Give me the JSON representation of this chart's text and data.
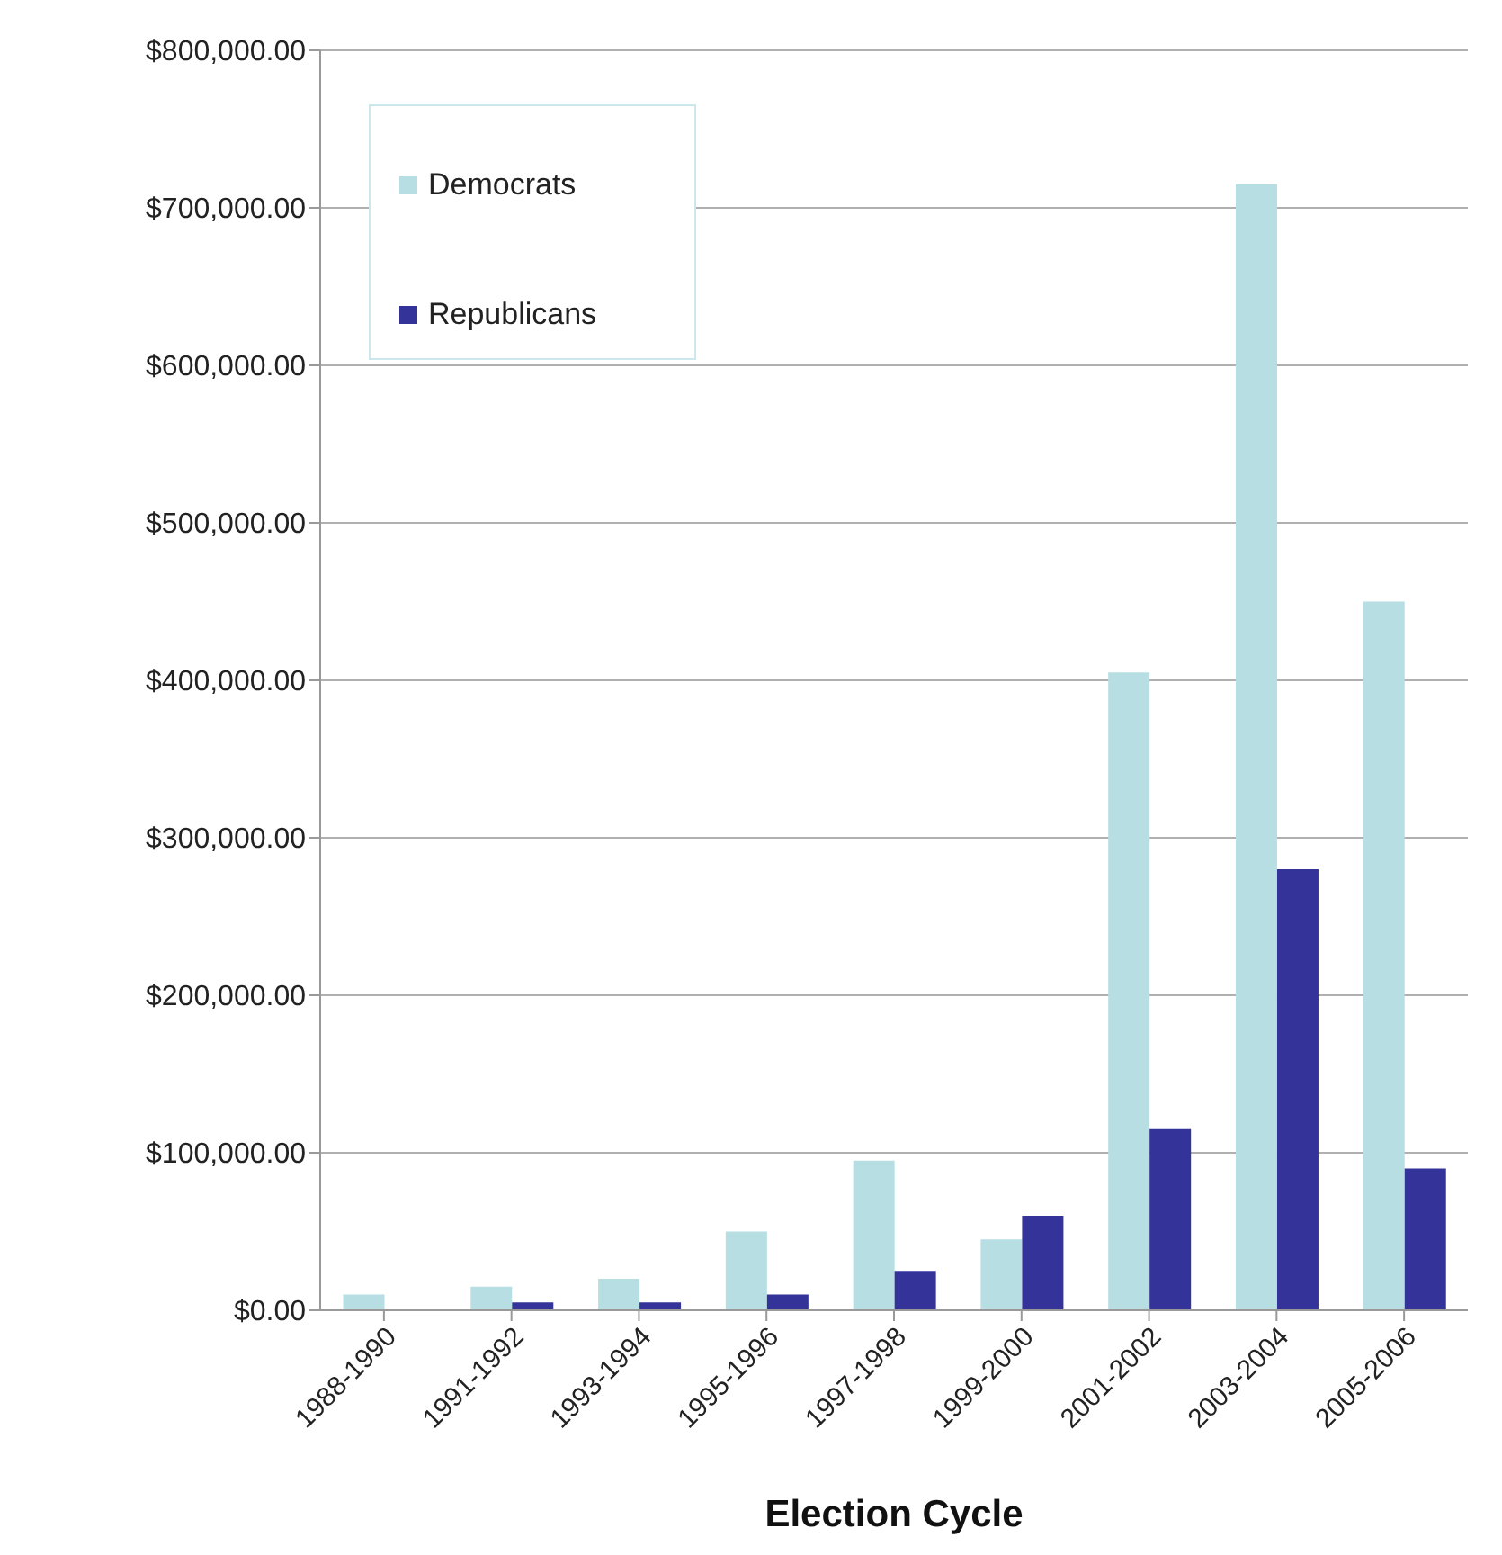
{
  "chart_data": {
    "type": "bar",
    "xlabel": "Election Cycle",
    "categories": [
      "1988-1990",
      "1991-1992",
      "1993-1994",
      "1995-1996",
      "1997-1998",
      "1999-2000",
      "2001-2002",
      "2003-2004",
      "2005-2006"
    ],
    "series": [
      {
        "name": "Democrats",
        "color": "#b7dfe3",
        "values": [
          10000,
          15000,
          20000,
          50000,
          95000,
          45000,
          405000,
          715000,
          450000
        ]
      },
      {
        "name": "Republicans",
        "color": "#333399",
        "values": [
          0,
          5000,
          5000,
          10000,
          25000,
          60000,
          115000,
          280000,
          90000
        ]
      }
    ],
    "ylim": [
      0,
      800000
    ],
    "yticks": [
      {
        "value": 0,
        "label": "$0.00"
      },
      {
        "value": 100000,
        "label": "$100,000.00"
      },
      {
        "value": 200000,
        "label": "$200,000.00"
      },
      {
        "value": 300000,
        "label": "$300,000.00"
      },
      {
        "value": 400000,
        "label": "$400,000.00"
      },
      {
        "value": 500000,
        "label": "$500,000.00"
      },
      {
        "value": 600000,
        "label": "$600,000.00"
      },
      {
        "value": 700000,
        "label": "$700,000.00"
      },
      {
        "value": 800000,
        "label": "$800,000.00"
      }
    ],
    "grid": "y",
    "legend": "top left"
  }
}
